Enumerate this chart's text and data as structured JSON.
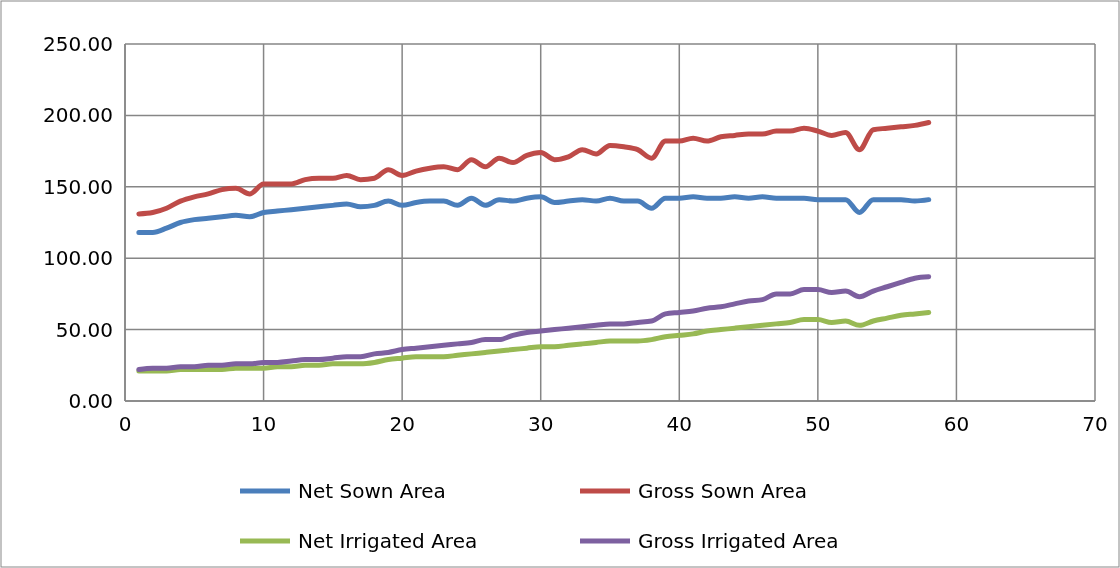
{
  "chart_data": {
    "type": "line",
    "x": [
      1,
      2,
      3,
      4,
      5,
      6,
      7,
      8,
      9,
      10,
      11,
      12,
      13,
      14,
      15,
      16,
      17,
      18,
      19,
      20,
      21,
      22,
      23,
      24,
      25,
      26,
      27,
      28,
      29,
      30,
      31,
      32,
      33,
      34,
      35,
      36,
      37,
      38,
      39,
      40,
      41,
      42,
      43,
      44,
      45,
      46,
      47,
      48,
      49,
      50,
      51,
      52,
      53,
      54,
      55,
      56,
      57,
      58
    ],
    "series": [
      {
        "name": "Net Sown Area",
        "color": "#4a7ebb",
        "values": [
          118,
          118,
          121,
          125,
          127,
          128,
          129,
          130,
          129,
          132,
          133,
          134,
          135,
          136,
          137,
          138,
          136,
          137,
          140,
          137,
          139,
          140,
          140,
          137,
          142,
          137,
          141,
          140,
          142,
          143,
          139,
          140,
          141,
          140,
          142,
          140,
          140,
          135,
          142,
          142,
          143,
          142,
          142,
          143,
          142,
          143,
          142,
          142,
          142,
          141,
          141,
          141,
          132,
          141,
          141,
          141,
          140,
          141
        ]
      },
      {
        "name": "Gross Sown Area",
        "color": "#be4b48",
        "values": [
          131,
          132,
          135,
          140,
          143,
          145,
          148,
          149,
          145,
          152,
          152,
          152,
          155,
          156,
          156,
          158,
          155,
          156,
          162,
          158,
          161,
          163,
          164,
          162,
          169,
          164,
          170,
          167,
          172,
          174,
          169,
          171,
          176,
          173,
          179,
          178,
          176,
          170,
          182,
          182,
          184,
          182,
          185,
          186,
          187,
          187,
          189,
          189,
          191,
          189,
          186,
          188,
          176,
          190,
          191,
          192,
          193,
          195
        ]
      },
      {
        "name": "Net Irrigated Area",
        "color": "#98b954",
        "values": [
          21,
          21,
          21,
          22,
          22,
          22,
          22,
          23,
          23,
          23,
          24,
          24,
          25,
          25,
          26,
          26,
          26,
          27,
          29,
          30,
          31,
          31,
          31,
          32,
          33,
          34,
          35,
          36,
          37,
          38,
          38,
          39,
          40,
          41,
          42,
          42,
          42,
          43,
          45,
          46,
          47,
          49,
          50,
          51,
          52,
          53,
          54,
          55,
          57,
          57,
          55,
          56,
          53,
          56,
          58,
          60,
          61,
          62
        ]
      },
      {
        "name": "Gross Irrigated Area",
        "color": "#7d60a0",
        "values": [
          22,
          23,
          23,
          24,
          24,
          25,
          25,
          26,
          26,
          27,
          27,
          28,
          29,
          29,
          30,
          31,
          31,
          33,
          34,
          36,
          37,
          38,
          39,
          40,
          41,
          43,
          43,
          46,
          48,
          49,
          50,
          51,
          52,
          53,
          54,
          54,
          55,
          56,
          61,
          62,
          63,
          65,
          66,
          68,
          70,
          71,
          75,
          75,
          78,
          78,
          76,
          77,
          73,
          77,
          80,
          83,
          86,
          87
        ]
      }
    ],
    "xlim": [
      0,
      70
    ],
    "xticks": [
      0,
      10,
      20,
      30,
      40,
      50,
      60,
      70
    ],
    "ylim": [
      0,
      250
    ],
    "yticks": [
      {
        "value": 0,
        "label": "0.00"
      },
      {
        "value": 50,
        "label": "50.00"
      },
      {
        "value": 100,
        "label": "100.00"
      },
      {
        "value": 150,
        "label": "150.00"
      },
      {
        "value": 200,
        "label": "200.00"
      },
      {
        "value": 250,
        "label": "250.00"
      }
    ],
    "grid": true,
    "legend": "bottom",
    "marker": "none",
    "line_style": "solid"
  }
}
